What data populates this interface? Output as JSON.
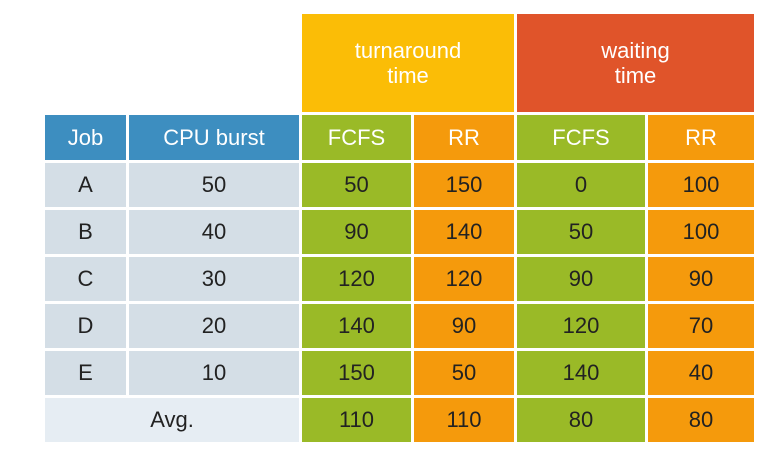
{
  "group_headers": {
    "turnaround": "turnaround\ntime",
    "waiting": "waiting\ntime"
  },
  "columns": [
    "Job",
    "CPU burst",
    "FCFS",
    "RR",
    "FCFS",
    "RR"
  ],
  "rows": [
    {
      "job": "A",
      "cpu": "50",
      "t_fcfs": "50",
      "t_rr": "150",
      "w_fcfs": "0",
      "w_rr": "100"
    },
    {
      "job": "B",
      "cpu": "40",
      "t_fcfs": "90",
      "t_rr": "140",
      "w_fcfs": "50",
      "w_rr": "100"
    },
    {
      "job": "C",
      "cpu": "30",
      "t_fcfs": "120",
      "t_rr": "120",
      "w_fcfs": "90",
      "w_rr": "90"
    },
    {
      "job": "D",
      "cpu": "20",
      "t_fcfs": "140",
      "t_rr": "90",
      "w_fcfs": "120",
      "w_rr": "70"
    },
    {
      "job": "E",
      "cpu": "10",
      "t_fcfs": "150",
      "t_rr": "50",
      "w_fcfs": "140",
      "w_rr": "40"
    }
  ],
  "avg": {
    "label": "Avg.",
    "t_fcfs": "110",
    "t_rr": "110",
    "w_fcfs": "80",
    "w_rr": "80"
  },
  "colors": {
    "turnaround_header": "#fbbd06",
    "waiting_header": "#e0542a",
    "job_header": "#3d8ec0",
    "fcfs": "#9aba27",
    "rr": "#f59a0c",
    "light_cell": "#d4dee6"
  }
}
